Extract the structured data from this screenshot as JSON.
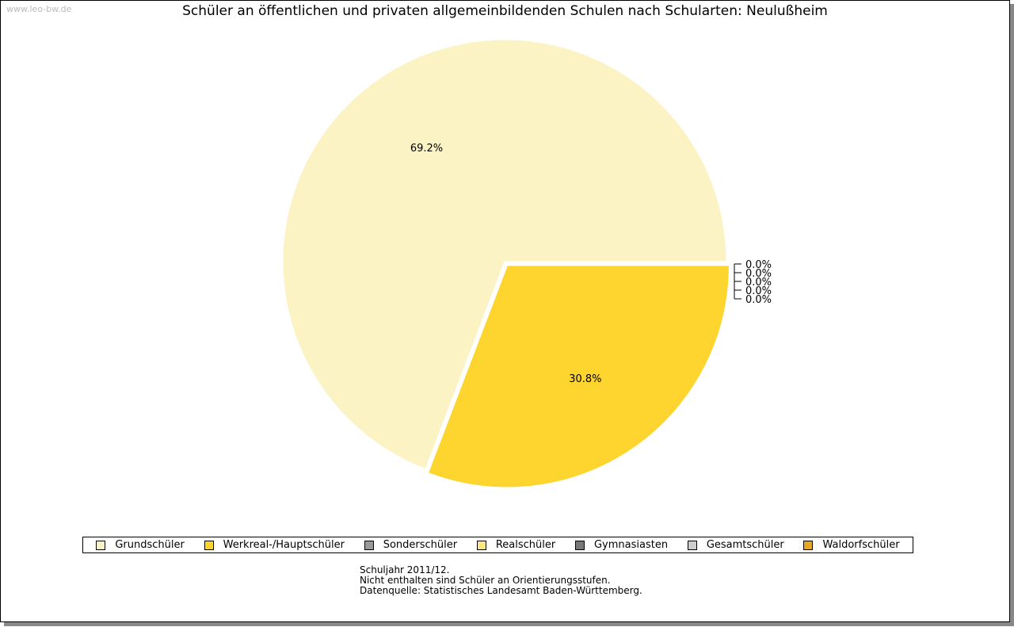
{
  "watermark": "www.leo-bw.de",
  "chart_data": {
    "type": "pie",
    "title": "Schüler an öffentlichen und privaten allgemeinbildenden Schulen nach Schularten: Neulußheim",
    "categories": [
      "Grundschüler",
      "Werkreal-/Hauptschüler",
      "Sonderschüler",
      "Realschüler",
      "Gymnasiasten",
      "Gesamtschüler",
      "Waldorfschüler"
    ],
    "values": [
      69.2,
      30.8,
      0.0,
      0.0,
      0.0,
      0.0,
      0.0
    ],
    "labels": [
      "69.2%",
      "30.8%",
      "0.0%",
      "0.0%",
      "0.0%",
      "0.0%",
      "0.0%"
    ],
    "colors": [
      "#fcf3c5",
      "#fdd52e",
      "#999999",
      "#fde68c",
      "#777777",
      "#cccccc",
      "#e5a823"
    ],
    "exploded": [
      false,
      true,
      false,
      false,
      false,
      false,
      false
    ],
    "legend_position": "bottom"
  },
  "notes": [
    "Schuljahr 2011/12.",
    "Nicht enthalten sind Schüler an Orientierungsstufen.",
    "",
    "Datenquelle: Statistisches Landesamt Baden-Württemberg."
  ]
}
